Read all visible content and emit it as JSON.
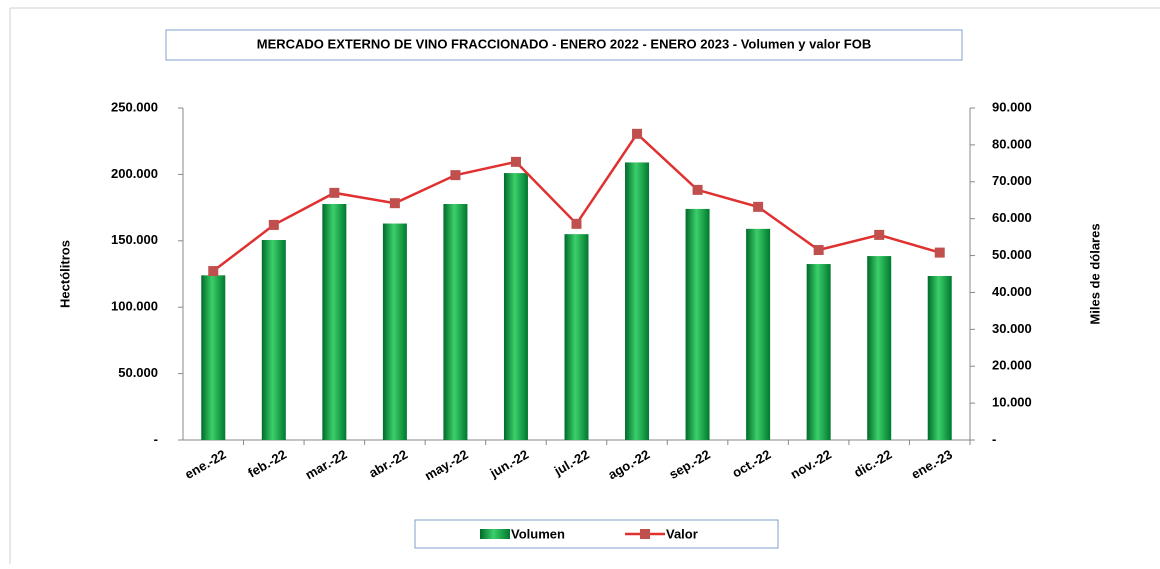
{
  "chart_data": {
    "type": "bar_line",
    "title": "MERCADO EXTERNO DE VINO FRACCIONADO - ENERO 2022 - ENERO 2023 - Volumen y valor FOB",
    "ylabel": "Hectólitros",
    "y2label": "Miles de dólares",
    "categories": [
      "ene.-22",
      "feb.-22",
      "mar.-22",
      "abr.-22",
      "may.-22",
      "jun.-22",
      "jul.-22",
      "ago.-22",
      "sep.-22",
      "oct.-22",
      "nov.-22",
      "dic.-22",
      "ene.-23"
    ],
    "series": [
      {
        "name": "Volumen",
        "type": "bar",
        "color": "#00a040",
        "values": [
          124000,
          150600,
          177700,
          163000,
          177700,
          201000,
          155000,
          209000,
          174000,
          159000,
          132500,
          138500,
          123500
        ]
      },
      {
        "name": "Valor",
        "type": "line",
        "axis": "y2",
        "color": "#e03030",
        "marker_color": "#c0504d",
        "values": [
          45800,
          58300,
          67000,
          64200,
          71800,
          75400,
          58600,
          83000,
          67800,
          63200,
          51500,
          55600,
          50800
        ]
      }
    ],
    "ylim": [
      0,
      250000
    ],
    "yticks": [
      {
        "value": 0,
        "label": "-"
      },
      {
        "value": 50000,
        "label": "50.000"
      },
      {
        "value": 100000,
        "label": "100.000"
      },
      {
        "value": 150000,
        "label": "150.000"
      },
      {
        "value": 200000,
        "label": "200.000"
      },
      {
        "value": 250000,
        "label": "250.000"
      }
    ],
    "y2lim": [
      0,
      90000
    ],
    "y2ticks": [
      {
        "value": 0,
        "label": "-"
      },
      {
        "value": 10000,
        "label": "10.000"
      },
      {
        "value": 20000,
        "label": "20.000"
      },
      {
        "value": 30000,
        "label": "30.000"
      },
      {
        "value": 40000,
        "label": "40.000"
      },
      {
        "value": 50000,
        "label": "50.000"
      },
      {
        "value": 60000,
        "label": "60.000"
      },
      {
        "value": 70000,
        "label": "70.000"
      },
      {
        "value": 80000,
        "label": "80.000"
      },
      {
        "value": 90000,
        "label": "90.000"
      }
    ],
    "legend": "bottom"
  }
}
